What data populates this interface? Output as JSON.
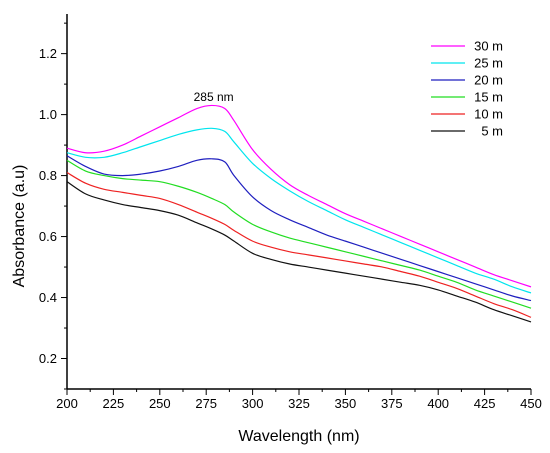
{
  "chart_data": {
    "type": "line",
    "title": "",
    "xlabel": "Wavelength (nm)",
    "ylabel": "Absorbance (a.u)",
    "xlim": [
      200,
      450
    ],
    "ylim": [
      0.1,
      1.33
    ],
    "xticks": [
      200,
      225,
      250,
      275,
      300,
      325,
      350,
      375,
      400,
      425,
      450
    ],
    "yticks": [
      0.2,
      0.4,
      0.6,
      0.8,
      1.0,
      1.2
    ],
    "ytick_labels": [
      "0.2",
      "0.4",
      "0.6",
      "0.8",
      "1.0",
      "1.2"
    ],
    "grid": false,
    "legend_position": "top-right",
    "annotations": [
      {
        "text": "285 nm",
        "x": 279,
        "y": 1.045
      }
    ],
    "x": [
      200,
      210,
      220,
      230,
      240,
      250,
      260,
      270,
      278,
      285,
      290,
      300,
      310,
      320,
      330,
      340,
      350,
      360,
      370,
      380,
      390,
      400,
      410,
      420,
      430,
      440,
      450
    ],
    "series": [
      {
        "name": "30 m",
        "color": "#ff00ff",
        "values": [
          0.89,
          0.875,
          0.88,
          0.9,
          0.93,
          0.96,
          0.99,
          1.02,
          1.03,
          1.02,
          0.98,
          0.885,
          0.82,
          0.77,
          0.735,
          0.705,
          0.675,
          0.65,
          0.625,
          0.6,
          0.575,
          0.55,
          0.525,
          0.5,
          0.475,
          0.455,
          0.435
        ]
      },
      {
        "name": "25 m",
        "color": "#00e5ee",
        "values": [
          0.875,
          0.86,
          0.86,
          0.875,
          0.895,
          0.915,
          0.935,
          0.95,
          0.955,
          0.945,
          0.91,
          0.84,
          0.79,
          0.75,
          0.715,
          0.685,
          0.655,
          0.63,
          0.605,
          0.58,
          0.555,
          0.53,
          0.505,
          0.48,
          0.46,
          0.435,
          0.415
        ]
      },
      {
        "name": "20 m",
        "color": "#1f1fbf",
        "values": [
          0.865,
          0.83,
          0.805,
          0.8,
          0.805,
          0.815,
          0.83,
          0.85,
          0.855,
          0.845,
          0.8,
          0.73,
          0.685,
          0.655,
          0.63,
          0.605,
          0.585,
          0.565,
          0.545,
          0.525,
          0.505,
          0.485,
          0.465,
          0.445,
          0.425,
          0.405,
          0.39
        ]
      },
      {
        "name": "15 m",
        "color": "#22dd22",
        "values": [
          0.85,
          0.815,
          0.8,
          0.79,
          0.785,
          0.78,
          0.765,
          0.745,
          0.725,
          0.705,
          0.68,
          0.64,
          0.615,
          0.595,
          0.58,
          0.565,
          0.55,
          0.535,
          0.52,
          0.505,
          0.49,
          0.47,
          0.45,
          0.425,
          0.405,
          0.385,
          0.365
        ]
      },
      {
        "name": "10 m",
        "color": "#ee2222",
        "values": [
          0.81,
          0.775,
          0.755,
          0.745,
          0.735,
          0.725,
          0.705,
          0.68,
          0.66,
          0.64,
          0.62,
          0.585,
          0.565,
          0.55,
          0.54,
          0.53,
          0.52,
          0.51,
          0.5,
          0.485,
          0.47,
          0.45,
          0.43,
          0.405,
          0.38,
          0.36,
          0.335
        ]
      },
      {
        "name": "5 m",
        "color": "#111111",
        "values": [
          0.78,
          0.74,
          0.72,
          0.705,
          0.695,
          0.685,
          0.67,
          0.645,
          0.625,
          0.605,
          0.585,
          0.545,
          0.525,
          0.51,
          0.5,
          0.49,
          0.48,
          0.47,
          0.46,
          0.45,
          0.44,
          0.425,
          0.405,
          0.385,
          0.36,
          0.34,
          0.32
        ]
      }
    ]
  }
}
